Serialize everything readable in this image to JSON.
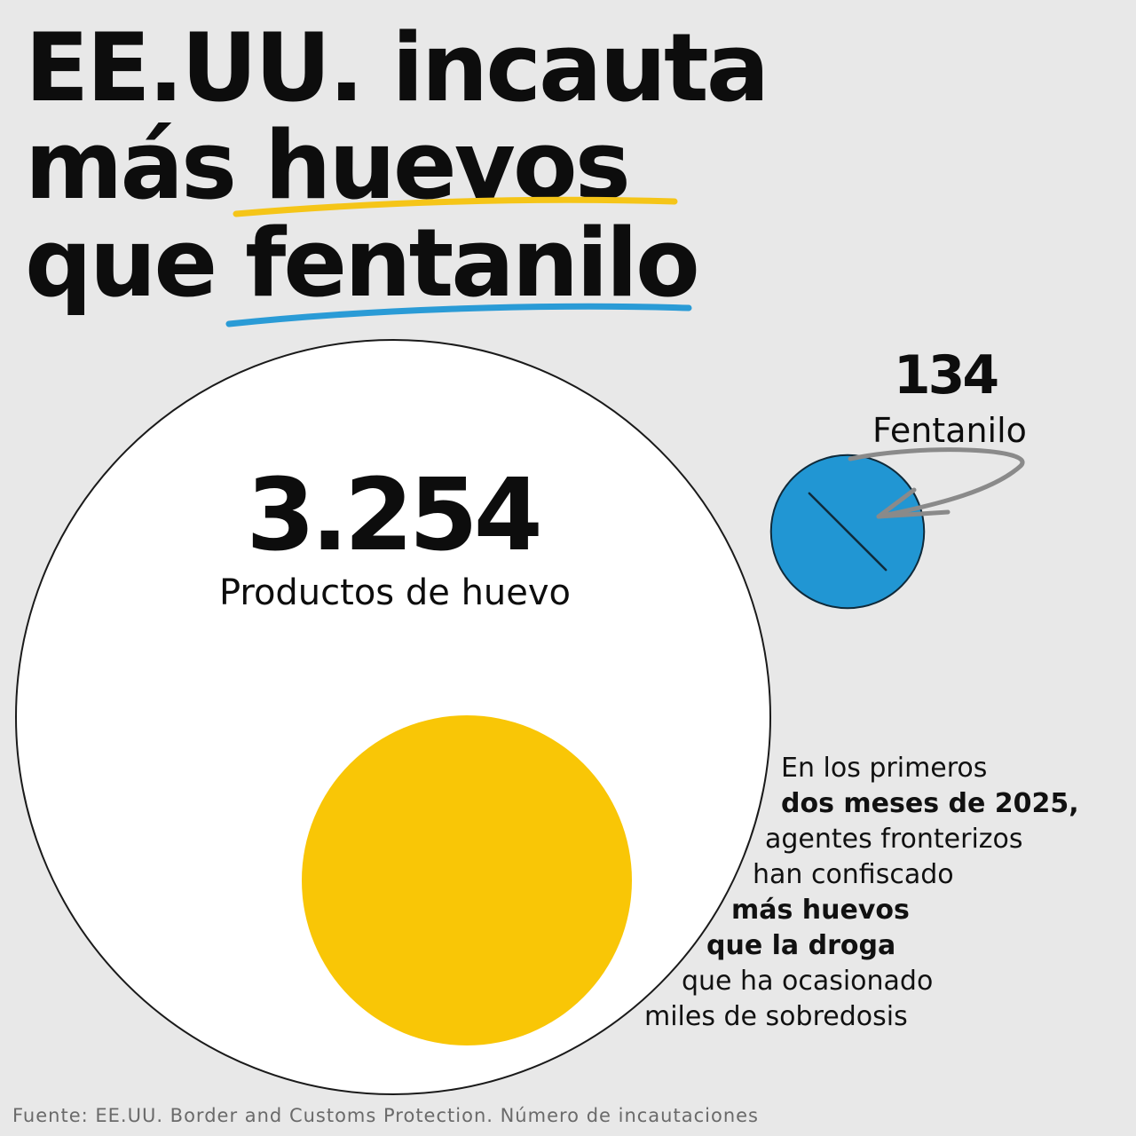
{
  "headline": {
    "line1": "EE.UU. incauta",
    "line2_a": "más ",
    "line2_b": "huevos",
    "line3_a": "que ",
    "line3_b": "fentanilo"
  },
  "colors": {
    "background": "#e8e8e8",
    "egg_white": "#ffffff",
    "egg_yolk": "#f9c606",
    "fentanyl_pill": "#2196d3",
    "underline_yellow": "#f5c518",
    "underline_blue": "#2a9bd6",
    "arrow": "#8a8a8a"
  },
  "icons": {
    "fentanyl_marker": "pill-icon",
    "pointer": "curved-arrow-icon"
  },
  "chart_data": {
    "type": "proportional-area",
    "series": [
      {
        "name": "Productos de huevo",
        "value": 3254,
        "value_label": "3.254"
      },
      {
        "name": "Fentanilo",
        "value": 134,
        "value_label": "134"
      }
    ]
  },
  "note": {
    "line1": "En los primeros",
    "line2": "dos meses de 2025,",
    "line3": "agentes fronterizos",
    "line4": "han confiscado",
    "line5": "más huevos",
    "line6": "que la droga",
    "line7": "que ha ocasionado",
    "line8": "miles de sobredosis"
  },
  "source": "Fuente: EE.UU.  Border and Customs Protection. Número de incautaciones"
}
